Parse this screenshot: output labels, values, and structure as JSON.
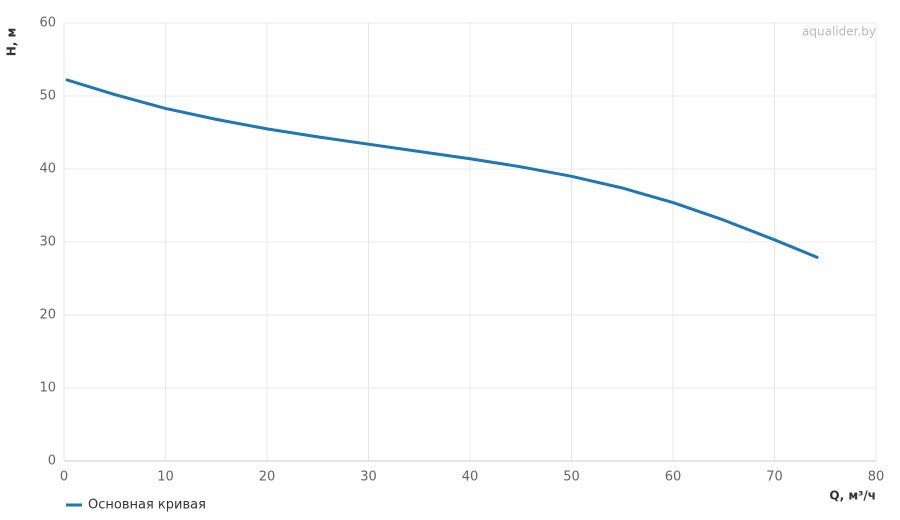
{
  "chart_data": {
    "type": "line",
    "watermark": "aqualider.by",
    "xlabel": "Q, м³/ч",
    "ylabel": "H, м",
    "xlim": [
      0,
      80
    ],
    "xticks": [
      0,
      10,
      20,
      30,
      40,
      50,
      60,
      70,
      80
    ],
    "ylim": [
      0,
      60
    ],
    "yticks": [
      0,
      10,
      20,
      30,
      40,
      50,
      60
    ],
    "grid": true,
    "legend": "bottom-left",
    "x": [
      0.3,
      5,
      10,
      15,
      20,
      25,
      30,
      35,
      40,
      45,
      50,
      55,
      60,
      65,
      70,
      74.2
    ],
    "series": [
      {
        "name": "Основная кривая",
        "color": "#1f77b4",
        "values": [
          52.2,
          50.2,
          48.3,
          46.8,
          45.5,
          44.4,
          43.4,
          42.4,
          41.4,
          40.3,
          39.0,
          37.4,
          35.4,
          33.0,
          30.3,
          27.9
        ]
      }
    ]
  }
}
